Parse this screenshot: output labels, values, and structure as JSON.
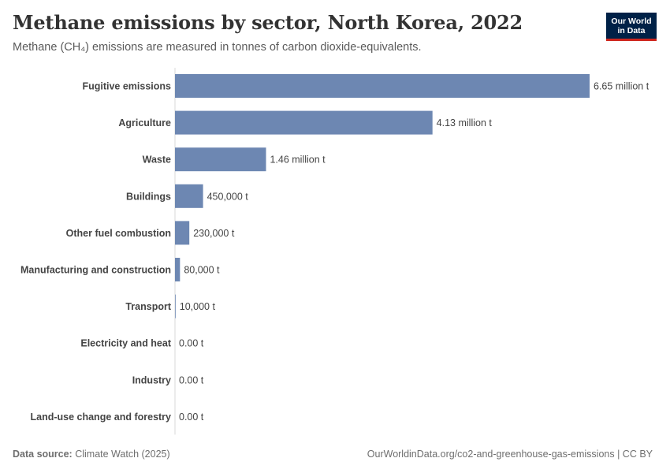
{
  "header": {
    "title": "Methane emissions by sector, North Korea, 2022",
    "subtitle": "Methane (CH₄) emissions are measured in tonnes of carbon dioxide-equivalents.",
    "logo_line1": "Our World",
    "logo_line2": "in Data"
  },
  "footer": {
    "source_label": "Data source:",
    "source_value": "Climate Watch (2025)",
    "url_license": "OurWorldinData.org/co2-and-greenhouse-gas-emissions | CC BY"
  },
  "colors": {
    "bar": "#6d87b2",
    "logo_bg": "#002147",
    "logo_accent": "#ce261e"
  },
  "chart_data": {
    "type": "bar",
    "orientation": "horizontal",
    "title": "Methane emissions by sector, North Korea, 2022",
    "unit": "tonnes of CO2-equivalents",
    "categories": [
      "Fugitive emissions",
      "Agriculture",
      "Waste",
      "Buildings",
      "Other fuel combustion",
      "Manufacturing and construction",
      "Transport",
      "Electricity and heat",
      "Industry",
      "Land-use change and forestry"
    ],
    "values": [
      6650000,
      4130000,
      1460000,
      450000,
      230000,
      80000,
      10000,
      0,
      0,
      0
    ],
    "value_labels": [
      "6.65 million t",
      "4.13 million t",
      "1.46 million t",
      "450,000 t",
      "230,000 t",
      "80,000 t",
      "10,000 t",
      "0.00 t",
      "0.00 t",
      "0.00 t"
    ],
    "xlim": [
      0,
      6650000
    ]
  }
}
